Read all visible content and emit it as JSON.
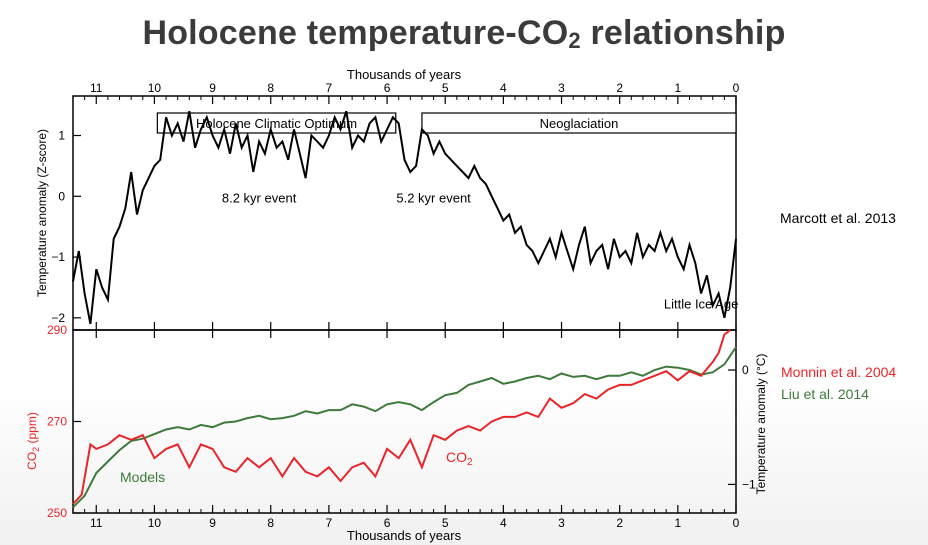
{
  "slide": {
    "title_main": "Holocene temperature-CO",
    "title_sub": "2",
    "title_tail": " relationship"
  },
  "sources": {
    "top": "Marcott et al. 2013",
    "co2": "Monnin et al. 2004",
    "models": "Liu et al. 2014"
  },
  "colors": {
    "co2": "#e8262a",
    "models": "#3e7a3a",
    "temperature": "#000000",
    "title": "#3b3b3b"
  },
  "chart_data": [
    {
      "type": "line",
      "panel": "top",
      "xlabel": "Thousands of years",
      "ylabel": "Temperature anomaly (Z-score)",
      "x_ticks": [
        "11",
        "10",
        "9",
        "8",
        "7",
        "6",
        "5",
        "4",
        "3",
        "2",
        "1",
        "0"
      ],
      "y_ticks": [
        "1",
        "0",
        "−1",
        "−2"
      ],
      "xlim": [
        11.4,
        0
      ],
      "ylim": [
        -2.2,
        1.65
      ],
      "grid": false,
      "periods": [
        {
          "label": "Holocene Climatic Optimum",
          "from": 9.95,
          "to": 5.85
        },
        {
          "label": "Neoglaciation",
          "from": 5.4,
          "to": 0.0
        }
      ],
      "annotations": [
        {
          "label": "8.2 kyr event",
          "x": 8.2,
          "y": -0.1
        },
        {
          "label": "5.2 kyr event",
          "x": 5.2,
          "y": -0.1
        },
        {
          "label": "Little Ice Age",
          "x": 0.6,
          "y": -1.85
        }
      ],
      "series": [
        {
          "x": [
            11.4,
            11.3,
            11.2,
            11.1,
            11.0,
            10.9,
            10.8,
            10.7,
            10.6,
            10.5,
            10.4,
            10.3,
            10.2,
            10.1,
            10.0,
            9.9,
            9.8,
            9.7,
            9.6,
            9.5,
            9.4,
            9.3,
            9.2,
            9.1,
            9.0,
            8.9,
            8.8,
            8.7,
            8.6,
            8.5,
            8.4,
            8.3,
            8.2,
            8.1,
            8.0,
            7.9,
            7.8,
            7.7,
            7.6,
            7.5,
            7.4,
            7.3,
            7.2,
            7.1,
            7.0,
            6.9,
            6.8,
            6.7,
            6.6,
            6.5,
            6.4,
            6.3,
            6.2,
            6.1,
            6.0,
            5.9,
            5.8,
            5.7,
            5.6,
            5.5,
            5.4,
            5.3,
            5.2,
            5.1,
            5.0,
            4.9,
            4.8,
            4.7,
            4.6,
            4.5,
            4.4,
            4.3,
            4.2,
            4.1,
            4.0,
            3.9,
            3.8,
            3.7,
            3.6,
            3.5,
            3.4,
            3.3,
            3.2,
            3.1,
            3.0,
            2.9,
            2.8,
            2.7,
            2.6,
            2.5,
            2.4,
            2.3,
            2.2,
            2.1,
            2.0,
            1.9,
            1.8,
            1.7,
            1.6,
            1.5,
            1.4,
            1.3,
            1.2,
            1.1,
            1.0,
            0.9,
            0.8,
            0.7,
            0.6,
            0.5,
            0.4,
            0.3,
            0.2,
            0.1,
            0.0
          ],
          "y": [
            -1.4,
            -0.9,
            -1.6,
            -2.1,
            -1.2,
            -1.5,
            -1.7,
            -0.7,
            -0.5,
            -0.2,
            0.4,
            -0.3,
            0.1,
            0.3,
            0.5,
            0.6,
            1.3,
            1.0,
            1.2,
            0.9,
            1.4,
            0.8,
            1.1,
            1.3,
            1.0,
            0.8,
            1.1,
            0.7,
            1.2,
            0.8,
            1.0,
            0.4,
            0.9,
            0.7,
            1.1,
            0.8,
            0.9,
            0.6,
            1.1,
            0.7,
            0.3,
            1.0,
            0.9,
            0.8,
            1.0,
            1.3,
            1.1,
            1.4,
            0.8,
            1.0,
            0.9,
            1.2,
            1.3,
            0.9,
            1.1,
            1.3,
            1.2,
            0.6,
            0.4,
            0.5,
            1.1,
            1.0,
            0.7,
            0.9,
            0.7,
            0.6,
            0.5,
            0.4,
            0.3,
            0.5,
            0.3,
            0.2,
            0.0,
            -0.2,
            -0.4,
            -0.3,
            -0.6,
            -0.5,
            -0.8,
            -0.9,
            -1.1,
            -0.9,
            -0.7,
            -1.0,
            -0.6,
            -0.9,
            -1.2,
            -0.8,
            -0.5,
            -1.1,
            -0.9,
            -0.8,
            -1.2,
            -0.7,
            -1.0,
            -0.9,
            -1.1,
            -0.6,
            -1.0,
            -0.8,
            -0.9,
            -0.6,
            -0.9,
            -0.7,
            -1.0,
            -1.2,
            -0.8,
            -1.1,
            -1.6,
            -1.3,
            -1.8,
            -1.6,
            -2.0,
            -1.5,
            -0.7
          ]
        }
      ]
    },
    {
      "type": "line",
      "panel": "bottom",
      "xlabel": "Thousands of years",
      "ylabel": "CO2 (ppm)",
      "y2label": "Temperature anomaly (°C)",
      "x_ticks": [
        "11",
        "10",
        "9",
        "8",
        "7",
        "6",
        "5",
        "4",
        "3",
        "2",
        "1",
        "0"
      ],
      "y_ticks": [
        "290",
        "270",
        "250"
      ],
      "y2_ticks": [
        "0",
        "−1"
      ],
      "xlim": [
        11.4,
        0
      ],
      "ylim": [
        250,
        290
      ],
      "y2lim": [
        -1.25,
        0.35
      ],
      "grid": false,
      "series": [
        {
          "name": "CO2",
          "axis": "left",
          "x": [
            11.4,
            11.25,
            11.1,
            11.0,
            10.8,
            10.6,
            10.4,
            10.2,
            10.0,
            9.8,
            9.6,
            9.4,
            9.2,
            9.0,
            8.8,
            8.6,
            8.4,
            8.2,
            8.0,
            7.8,
            7.6,
            7.4,
            7.2,
            7.0,
            6.8,
            6.6,
            6.4,
            6.2,
            6.0,
            5.8,
            5.6,
            5.4,
            5.2,
            5.0,
            4.8,
            4.6,
            4.4,
            4.2,
            4.0,
            3.8,
            3.6,
            3.4,
            3.2,
            3.0,
            2.8,
            2.6,
            2.4,
            2.2,
            2.0,
            1.8,
            1.6,
            1.4,
            1.2,
            1.0,
            0.8,
            0.6,
            0.4,
            0.3,
            0.2,
            0.1
          ],
          "y": [
            252,
            254,
            265,
            264,
            265,
            267,
            266,
            267,
            262,
            264,
            265,
            260,
            265,
            264,
            260,
            259,
            262,
            260,
            262,
            258,
            262,
            259,
            258,
            260,
            257,
            260,
            261,
            258,
            264,
            262,
            266,
            260,
            267,
            266,
            268,
            269,
            268,
            270,
            271,
            271,
            272,
            271,
            275,
            273,
            274,
            276,
            275,
            277,
            278,
            278,
            279,
            280,
            281,
            279,
            281,
            280,
            283,
            285,
            289,
            290
          ]
        },
        {
          "name": "Models",
          "axis": "right",
          "x": [
            11.4,
            11.2,
            11.0,
            10.8,
            10.6,
            10.4,
            10.2,
            10.0,
            9.8,
            9.6,
            9.4,
            9.2,
            9.0,
            8.8,
            8.6,
            8.4,
            8.2,
            8.0,
            7.8,
            7.6,
            7.4,
            7.2,
            7.0,
            6.8,
            6.6,
            6.4,
            6.2,
            6.0,
            5.8,
            5.6,
            5.4,
            5.2,
            5.0,
            4.8,
            4.6,
            4.4,
            4.2,
            4.0,
            3.8,
            3.6,
            3.4,
            3.2,
            3.0,
            2.8,
            2.6,
            2.4,
            2.2,
            2.0,
            1.8,
            1.6,
            1.4,
            1.2,
            1.0,
            0.8,
            0.6,
            0.4,
            0.2,
            0.0
          ],
          "y": [
            -1.2,
            -1.1,
            -0.9,
            -0.8,
            -0.7,
            -0.62,
            -0.6,
            -0.56,
            -0.52,
            -0.5,
            -0.52,
            -0.48,
            -0.5,
            -0.46,
            -0.45,
            -0.42,
            -0.4,
            -0.43,
            -0.42,
            -0.4,
            -0.36,
            -0.38,
            -0.35,
            -0.35,
            -0.3,
            -0.32,
            -0.36,
            -0.3,
            -0.28,
            -0.3,
            -0.35,
            -0.28,
            -0.22,
            -0.2,
            -0.13,
            -0.1,
            -0.07,
            -0.12,
            -0.1,
            -0.07,
            -0.05,
            -0.08,
            -0.03,
            -0.06,
            -0.05,
            -0.08,
            -0.05,
            -0.05,
            -0.02,
            -0.05,
            0.0,
            0.03,
            0.02,
            0.0,
            -0.04,
            -0.02,
            0.05,
            0.2
          ]
        }
      ],
      "labels": [
        {
          "text": "CO",
          "sub": "2",
          "series": "CO2"
        },
        {
          "text": "Models",
          "series": "Models"
        }
      ]
    }
  ]
}
